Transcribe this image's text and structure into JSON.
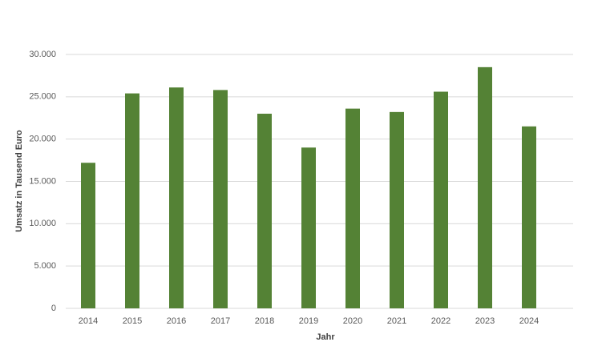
{
  "chart_data": {
    "type": "bar",
    "x_label": "Jahr",
    "y_label": "Umsatz in Tausend Euro",
    "categories": [
      "2014",
      "2015",
      "2016",
      "2017",
      "2018",
      "2019",
      "2020",
      "2021",
      "2022",
      "2023",
      "2024"
    ],
    "values": [
      17200,
      25400,
      26100,
      25800,
      23000,
      19000,
      23600,
      23200,
      25600,
      28500,
      21500
    ],
    "color": "#548235",
    "ylim": [
      0,
      30000
    ],
    "yticks": [
      0,
      {
        "value": 5000,
        "label": "5.000"
      },
      {
        "value": 10000,
        "label": "10.000"
      },
      {
        "value": 15000,
        "label": "15.000"
      },
      {
        "value": 20000,
        "label": "20.000"
      },
      {
        "value": 25000,
        "label": "25.000"
      },
      {
        "value": 30000,
        "label": "30.000"
      }
    ],
    "grid": true
  }
}
